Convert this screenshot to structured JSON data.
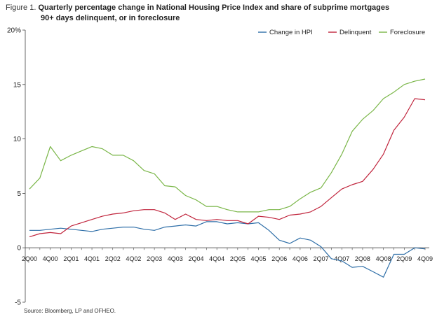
{
  "figure": {
    "label": "Figure 1.",
    "title_line1": "Quarterly percentage change in National Housing Price Index and share of subprime mortgages",
    "title_line2": "90+ days delinquent, or in foreclosure",
    "source": "Source: Bloomberg, LP and OFHEO."
  },
  "chart_data": {
    "type": "line",
    "title": "Quarterly percentage change in National Housing Price Index and share of subprime mortgages 90+ days delinquent, or in foreclosure",
    "xlabel": "",
    "ylabel": "",
    "ylim": [
      -5,
      20
    ],
    "yticks": [
      -5,
      0,
      5,
      10,
      15,
      20
    ],
    "ytick_labels": [
      "-5",
      "0",
      "5",
      "10",
      "15",
      "20%"
    ],
    "x_tick_labels": [
      "2Q00",
      "4Q00",
      "2Q01",
      "4Q01",
      "2Q02",
      "4Q02",
      "2Q03",
      "4Q03",
      "2Q04",
      "4Q04",
      "2Q05",
      "4Q05",
      "2Q06",
      "4Q06",
      "2Q07",
      "4Q07",
      "2Q08",
      "4Q08",
      "2Q09",
      "4Q09"
    ],
    "x": [
      "2Q00",
      "3Q00",
      "4Q00",
      "1Q01",
      "2Q01",
      "3Q01",
      "4Q01",
      "1Q02",
      "2Q02",
      "3Q02",
      "4Q02",
      "1Q03",
      "2Q03",
      "3Q03",
      "4Q03",
      "1Q04",
      "2Q04",
      "3Q04",
      "4Q04",
      "1Q05",
      "2Q05",
      "3Q05",
      "4Q05",
      "1Q06",
      "2Q06",
      "3Q06",
      "4Q06",
      "1Q07",
      "2Q07",
      "3Q07",
      "4Q07",
      "1Q08",
      "2Q08",
      "3Q08",
      "4Q08",
      "1Q09",
      "2Q09",
      "3Q09",
      "4Q09"
    ],
    "grid": false,
    "legend_position": "top-right",
    "series": [
      {
        "name": "Change in HPI",
        "color": "#2f6fa8",
        "values": [
          1.6,
          1.6,
          1.7,
          1.8,
          1.7,
          1.6,
          1.5,
          1.7,
          1.8,
          1.9,
          1.9,
          1.7,
          1.6,
          1.9,
          2.0,
          2.1,
          2.0,
          2.4,
          2.4,
          2.2,
          2.3,
          2.2,
          2.3,
          1.6,
          0.7,
          0.4,
          0.9,
          0.7,
          0.1,
          -1.0,
          -1.2,
          -1.8,
          -1.7,
          -2.2,
          -2.7,
          -0.6,
          -0.6,
          0.0,
          -0.1
        ]
      },
      {
        "name": "Delinquent",
        "color": "#c0243c",
        "values": [
          1.0,
          1.3,
          1.4,
          1.3,
          2.0,
          2.3,
          2.6,
          2.9,
          3.1,
          3.2,
          3.4,
          3.5,
          3.5,
          3.2,
          2.6,
          3.1,
          2.6,
          2.5,
          2.6,
          2.5,
          2.5,
          2.2,
          2.9,
          2.8,
          2.6,
          3.0,
          3.1,
          3.3,
          3.8,
          4.6,
          5.4,
          5.8,
          6.1,
          7.2,
          8.6,
          10.8,
          12.0,
          13.7,
          13.6
        ]
      },
      {
        "name": "Foreclosure",
        "color": "#7ab648",
        "values": [
          5.4,
          6.4,
          9.3,
          8.0,
          8.5,
          8.9,
          9.3,
          9.1,
          8.5,
          8.5,
          8.0,
          7.1,
          6.8,
          5.7,
          5.6,
          4.8,
          4.4,
          3.8,
          3.8,
          3.5,
          3.3,
          3.3,
          3.3,
          3.5,
          3.5,
          3.8,
          4.5,
          5.1,
          5.5,
          6.9,
          8.6,
          10.7,
          11.8,
          12.6,
          13.7,
          14.3,
          15.0,
          15.3,
          15.5
        ]
      }
    ]
  }
}
